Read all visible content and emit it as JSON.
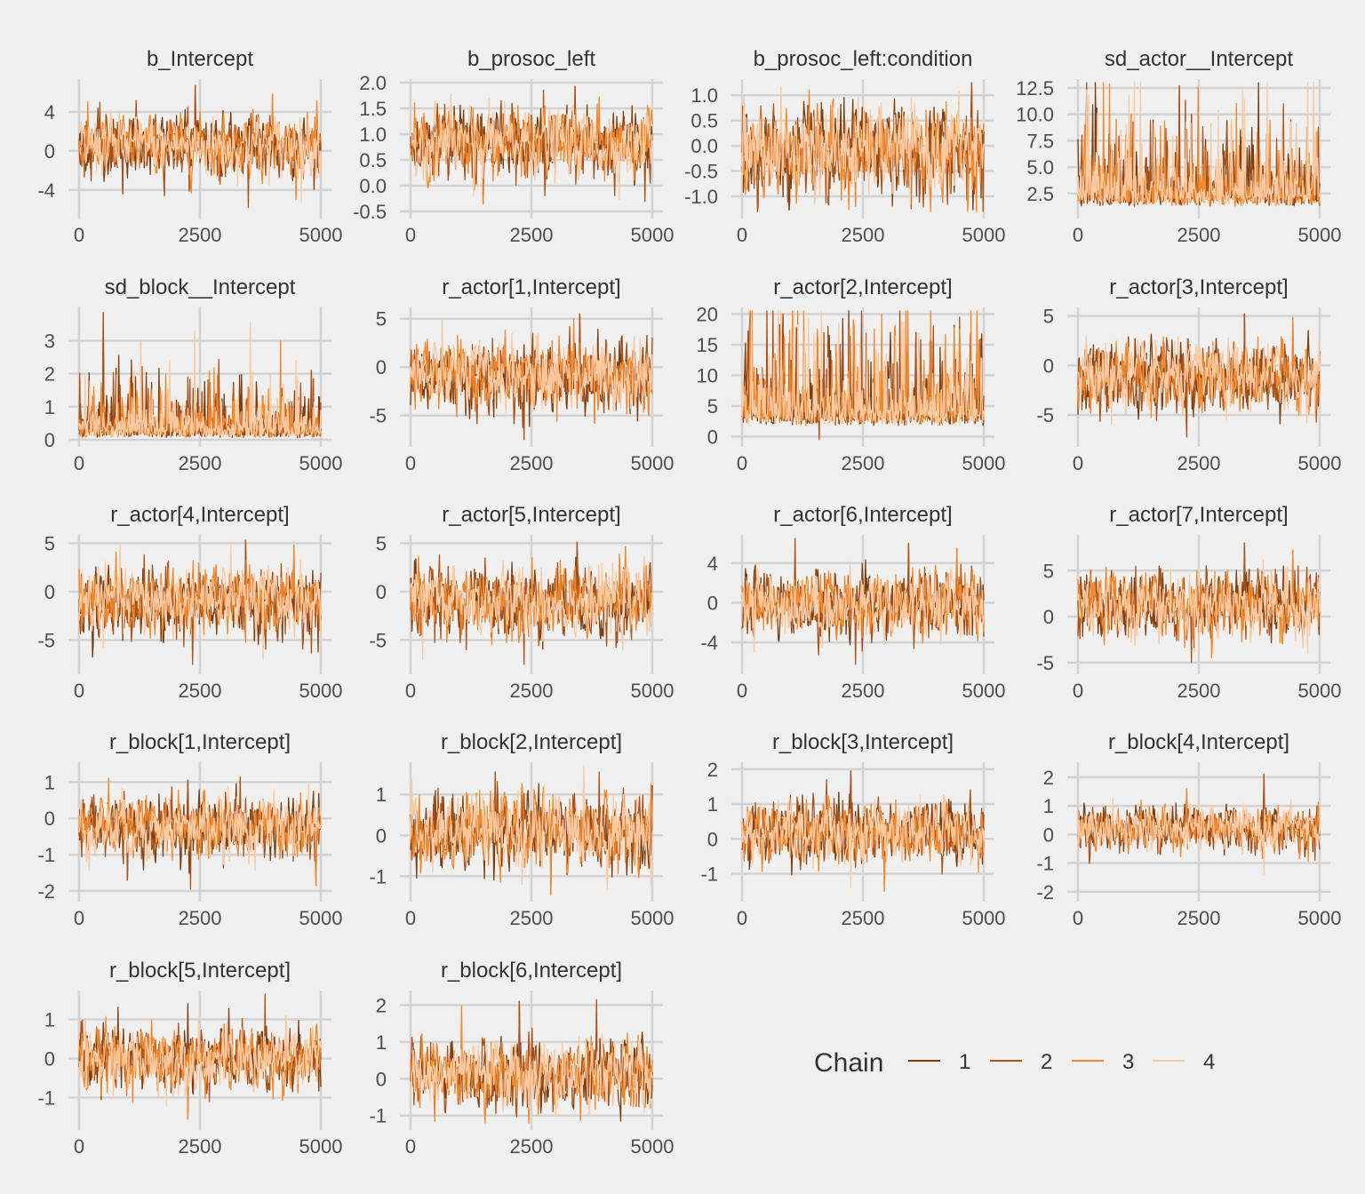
{
  "chart_data": {
    "type": "line",
    "legend": {
      "title": "Chain",
      "placement": "bottom-right",
      "grid": true
    },
    "chains": [
      {
        "name": "1",
        "color": "#7a3e10"
      },
      {
        "name": "2",
        "color": "#a9521a"
      },
      {
        "name": "3",
        "color": "#f0892e"
      },
      {
        "name": "4",
        "color": "#fcc9a0"
      }
    ],
    "iterations": 5000,
    "x_ticks": [
      0,
      2500,
      5000
    ],
    "x_tick_labels": [
      "0",
      "2500",
      "5000"
    ],
    "panels": [
      {
        "title": "b_Intercept",
        "ylim": [
          -6.2,
          7.0
        ],
        "yticks": [
          -4,
          0,
          4
        ],
        "ytick_labels": [
          "-4",
          "0",
          "4"
        ],
        "center": 0.6,
        "spread": 3.3,
        "spikes": [
          [
            0.48,
            6.7
          ],
          [
            0.7,
            -5.8
          ],
          [
            0.8,
            5.8
          ],
          [
            0.92,
            -5.2
          ],
          [
            0.18,
            -4.4
          ]
        ],
        "skew": 0
      },
      {
        "title": "b_prosoc_left",
        "ylim": [
          -0.5,
          2.0
        ],
        "yticks": [
          -0.5,
          0.0,
          0.5,
          1.0,
          1.5,
          2.0
        ],
        "ytick_labels": [
          "-0.5",
          "0.0",
          "0.5",
          "1.0",
          "1.5",
          "2.0"
        ],
        "center": 0.82,
        "spread": 0.7,
        "spikes": [
          [
            0.68,
            1.93
          ],
          [
            0.55,
            1.85
          ],
          [
            0.3,
            -0.35
          ],
          [
            0.26,
            -0.2
          ]
        ],
        "skew": 0
      },
      {
        "title": "b_prosoc_left:condition",
        "ylim": [
          -1.3,
          1.25
        ],
        "yticks": [
          -1.0,
          -0.5,
          0.0,
          0.5,
          1.0
        ],
        "ytick_labels": [
          "-1.0",
          "-0.5",
          "0.0",
          "0.5",
          "1.0"
        ],
        "center": -0.1,
        "spread": 0.95,
        "spikes": [
          [
            0.95,
            1.25
          ],
          [
            0.7,
            -1.25
          ],
          [
            0.47,
            -1.2
          ],
          [
            0.3,
            -1.15
          ]
        ],
        "skew": 0
      },
      {
        "title": "sd_actor__Intercept",
        "ylim": [
          0.8,
          13.0
        ],
        "yticks": [
          2.5,
          5.0,
          7.5,
          10.0,
          12.5
        ],
        "ytick_labels": [
          "2.5",
          "5.0",
          "7.5",
          "10.0",
          "12.5"
        ],
        "center": 1.3,
        "spread": 4.0,
        "spikes": [
          [
            0.42,
            12.7
          ],
          [
            0.85,
            11.0
          ],
          [
            0.22,
            10.0
          ],
          [
            0.08,
            10.1
          ],
          [
            0.47,
            10.0
          ],
          [
            0.3,
            9.4
          ]
        ],
        "skew": 1,
        "floor": 0.9
      },
      {
        "title": "sd_block__Intercept",
        "ylim": [
          0.0,
          3.9
        ],
        "yticks": [
          0,
          1,
          2,
          3
        ],
        "ytick_labels": [
          "0",
          "1",
          "2",
          "3"
        ],
        "center": 0.06,
        "spread": 0.9,
        "spikes": [
          [
            0.1,
            3.85
          ],
          [
            0.45,
            1.9
          ],
          [
            0.7,
            1.6
          ],
          [
            0.37,
            1.4
          ],
          [
            0.96,
            2.1
          ]
        ],
        "skew": 1,
        "floor": 0.0
      },
      {
        "title": "r_actor[1,Intercept]",
        "ylim": [
          -7.5,
          5.8
        ],
        "yticks": [
          -5,
          0,
          5
        ],
        "ytick_labels": [
          "-5",
          "0",
          "5"
        ],
        "center": -0.9,
        "spread": 3.8,
        "spikes": [
          [
            0.7,
            5.5
          ],
          [
            0.47,
            -7.5
          ],
          [
            0.76,
            -5.8
          ],
          [
            0.95,
            3.0
          ]
        ],
        "skew": 0
      },
      {
        "title": "r_actor[2,Intercept]",
        "ylim": [
          -0.5,
          20.5
        ],
        "yticks": [
          0,
          5,
          10,
          15,
          20
        ],
        "ytick_labels": [
          "0",
          "5",
          "10",
          "15",
          "20"
        ],
        "center": 1.8,
        "spread": 8.0,
        "spikes": [
          [
            0.17,
            20.0
          ],
          [
            0.9,
            19.5
          ],
          [
            0.46,
            19.0
          ],
          [
            0.4,
            18.5
          ],
          [
            0.72,
            17.0
          ],
          [
            0.32,
            -0.8
          ]
        ],
        "skew": 1,
        "floor": -0.3
      },
      {
        "title": "r_actor[3,Intercept]",
        "ylim": [
          -7.5,
          5.5
        ],
        "yticks": [
          -5,
          0,
          5
        ],
        "ytick_labels": [
          "-5",
          "0",
          "5"
        ],
        "center": -1.2,
        "spread": 3.7,
        "spikes": [
          [
            0.69,
            5.2
          ],
          [
            0.45,
            -7.2
          ],
          [
            0.89,
            4.8
          ],
          [
            0.14,
            -6.0
          ]
        ],
        "skew": 0
      },
      {
        "title": "r_actor[4,Intercept]",
        "ylim": [
          -7.8,
          5.5
        ],
        "yticks": [
          -5,
          0,
          5
        ],
        "ytick_labels": [
          "-5",
          "0",
          "5"
        ],
        "center": -1.0,
        "spread": 3.8,
        "spikes": [
          [
            0.69,
            5.3
          ],
          [
            0.47,
            -7.5
          ],
          [
            0.89,
            4.8
          ],
          [
            0.76,
            -7.0
          ]
        ],
        "skew": 0
      },
      {
        "title": "r_actor[5,Intercept]",
        "ylim": [
          -7.8,
          5.5
        ],
        "yticks": [
          -5,
          0,
          5
        ],
        "ytick_labels": [
          "-5",
          "0",
          "5"
        ],
        "center": -1.0,
        "spread": 3.8,
        "spikes": [
          [
            0.69,
            5.1
          ],
          [
            0.47,
            -7.5
          ],
          [
            0.89,
            4.6
          ],
          [
            0.05,
            -7.0
          ]
        ],
        "skew": 0
      },
      {
        "title": "r_actor[6,Intercept]",
        "ylim": [
          -6.5,
          6.5
        ],
        "yticks": [
          -4,
          0,
          4
        ],
        "ytick_labels": [
          "-4",
          "0",
          "4"
        ],
        "center": -0.2,
        "spread": 3.4,
        "spikes": [
          [
            0.69,
            6.0
          ],
          [
            0.47,
            -6.2
          ],
          [
            0.89,
            5.5
          ],
          [
            0.05,
            -5.0
          ]
        ],
        "skew": 0
      },
      {
        "title": "r_actor[7,Intercept]",
        "ylim": [
          -5.5,
          8.5
        ],
        "yticks": [
          -5,
          0,
          5
        ],
        "ytick_labels": [
          "-5",
          "0",
          "5"
        ],
        "center": 1.3,
        "spread": 3.8,
        "spikes": [
          [
            0.69,
            8.0
          ],
          [
            0.47,
            -5.0
          ],
          [
            0.89,
            7.2
          ],
          [
            0.95,
            -4.0
          ]
        ],
        "skew": 0
      },
      {
        "title": "r_block[1,Intercept]",
        "ylim": [
          -2.1,
          1.45
        ],
        "yticks": [
          -2,
          -1,
          0,
          1
        ],
        "ytick_labels": [
          "-2",
          "-1",
          "0",
          "1"
        ],
        "center": -0.25,
        "spread": 0.9,
        "spikes": [
          [
            0.45,
            1.05
          ],
          [
            0.46,
            -1.95
          ],
          [
            0.98,
            -1.85
          ],
          [
            0.95,
            1.0
          ],
          [
            0.2,
            -1.7
          ]
        ],
        "skew": 0
      },
      {
        "title": "r_block[2,Intercept]",
        "ylim": [
          -1.45,
          1.7
        ],
        "yticks": [
          -1,
          0,
          1
        ],
        "ytick_labels": [
          "-1",
          "0",
          "1"
        ],
        "center": 0.1,
        "spread": 0.95,
        "spikes": [
          [
            0.35,
            1.55
          ],
          [
            0.78,
            1.55
          ],
          [
            0.58,
            -1.45
          ],
          [
            0.46,
            -1.2
          ]
        ],
        "skew": 0
      },
      {
        "title": "r_block[3,Intercept]",
        "ylim": [
          -1.6,
          2.1
        ],
        "yticks": [
          -1,
          0,
          1,
          2
        ],
        "ytick_labels": [
          "-1",
          "0",
          "1",
          "2"
        ],
        "center": 0.2,
        "spread": 0.95,
        "spikes": [
          [
            0.45,
            1.95
          ],
          [
            0.35,
            1.7
          ],
          [
            0.59,
            -1.5
          ],
          [
            0.45,
            -1.4
          ]
        ],
        "skew": 0
      },
      {
        "title": "r_block[4,Intercept]",
        "ylim": [
          -2.1,
          2.4
        ],
        "yticks": [
          -2,
          -1,
          0,
          1,
          2
        ],
        "ytick_labels": [
          "-2",
          "-1",
          "0",
          "1",
          "2"
        ],
        "center": 0.2,
        "spread": 0.8,
        "spikes": [
          [
            0.77,
            2.1
          ],
          [
            0.45,
            -1.9
          ],
          [
            0.45,
            1.6
          ],
          [
            0.77,
            -1.4
          ]
        ],
        "skew": 0
      },
      {
        "title": "r_block[5,Intercept]",
        "ylim": [
          -1.65,
          1.65
        ],
        "yticks": [
          -1,
          0,
          1
        ],
        "ytick_labels": [
          "-1",
          "0",
          "1"
        ],
        "center": 0.0,
        "spread": 0.85,
        "spikes": [
          [
            0.45,
            1.4
          ],
          [
            0.77,
            1.65
          ],
          [
            0.45,
            -1.55
          ],
          [
            0.36,
            -1.2
          ]
        ],
        "skew": 0
      },
      {
        "title": "r_block[6,Intercept]",
        "ylim": [
          -1.2,
          2.3
        ],
        "yticks": [
          -1,
          0,
          1,
          2
        ],
        "ytick_labels": [
          "-1",
          "0",
          "1",
          "2"
        ],
        "center": 0.1,
        "spread": 0.95,
        "spikes": [
          [
            0.45,
            2.1
          ],
          [
            0.77,
            2.15
          ],
          [
            0.1,
            -1.15
          ],
          [
            0.6,
            -1.0
          ]
        ],
        "skew": 0
      }
    ]
  }
}
